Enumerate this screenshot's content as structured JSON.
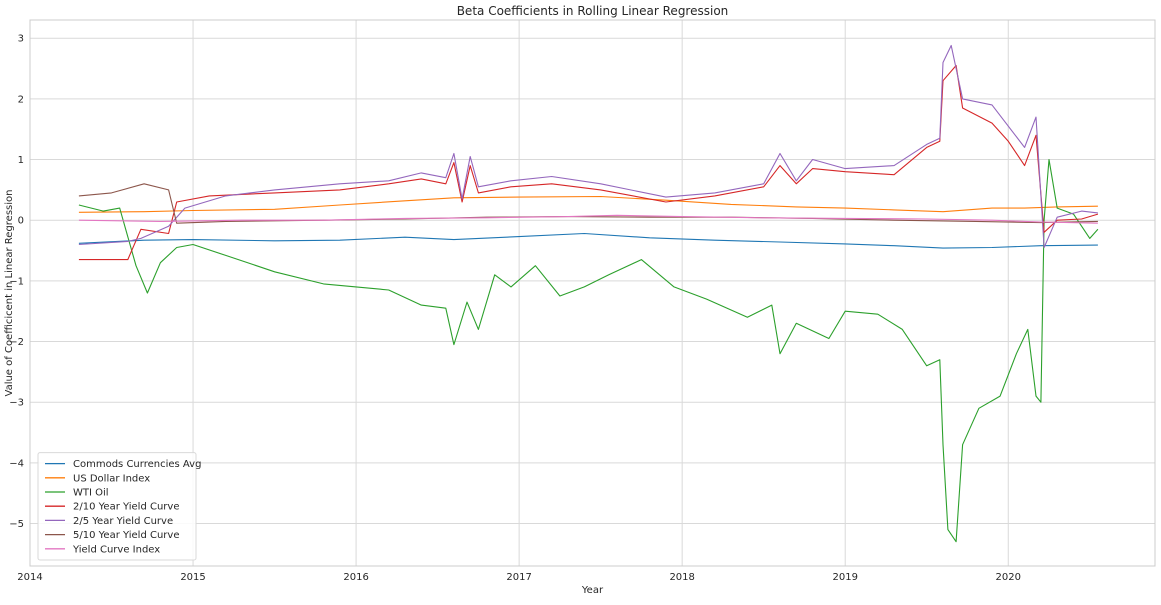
{
  "chart_data": {
    "type": "line",
    "title": "Beta Coefficients in Rolling Linear Regression",
    "xlabel": "Year",
    "ylabel": "Value of Coefficicent in Linear Regression",
    "x_ticks": [
      "2014",
      "2015",
      "2016",
      "2017",
      "2018",
      "2019",
      "2020"
    ],
    "x_tick_values": [
      2014,
      2015,
      2016,
      2017,
      2018,
      2019,
      2020
    ],
    "xlim": [
      2014.0,
      2020.9
    ],
    "y_ticks": [
      "−5",
      "−4",
      "−3",
      "−2",
      "−1",
      "0",
      "1",
      "2",
      "3"
    ],
    "y_tick_values": [
      -5,
      -4,
      -3,
      -2,
      -1,
      0,
      1,
      2,
      3
    ],
    "ylim": [
      -5.7,
      3.3
    ],
    "grid": true,
    "legend_position": "lower-left",
    "series": [
      {
        "name": "Commods Currencies Avg",
        "color": "#1f77b4",
        "points": [
          [
            2014.3,
            -0.38
          ],
          [
            2014.7,
            -0.33
          ],
          [
            2015.0,
            -0.32
          ],
          [
            2015.5,
            -0.34
          ],
          [
            2015.9,
            -0.33
          ],
          [
            2016.3,
            -0.28
          ],
          [
            2016.6,
            -0.32
          ],
          [
            2017.0,
            -0.27
          ],
          [
            2017.4,
            -0.22
          ],
          [
            2017.8,
            -0.29
          ],
          [
            2018.2,
            -0.33
          ],
          [
            2018.6,
            -0.36
          ],
          [
            2019.0,
            -0.39
          ],
          [
            2019.3,
            -0.42
          ],
          [
            2019.6,
            -0.46
          ],
          [
            2019.9,
            -0.45
          ],
          [
            2020.2,
            -0.42
          ],
          [
            2020.55,
            -0.41
          ]
        ]
      },
      {
        "name": "US Dollar Index",
        "color": "#ff7f0e",
        "points": [
          [
            2014.3,
            0.13
          ],
          [
            2014.7,
            0.14
          ],
          [
            2015.0,
            0.16
          ],
          [
            2015.5,
            0.18
          ],
          [
            2015.9,
            0.25
          ],
          [
            2016.3,
            0.32
          ],
          [
            2016.6,
            0.37
          ],
          [
            2017.0,
            0.38
          ],
          [
            2017.5,
            0.39
          ],
          [
            2017.9,
            0.33
          ],
          [
            2018.3,
            0.26
          ],
          [
            2018.7,
            0.22
          ],
          [
            2019.0,
            0.2
          ],
          [
            2019.3,
            0.17
          ],
          [
            2019.6,
            0.14
          ],
          [
            2019.9,
            0.2
          ],
          [
            2020.1,
            0.2
          ],
          [
            2020.3,
            0.22
          ],
          [
            2020.55,
            0.23
          ]
        ]
      },
      {
        "name": "WTI Oil",
        "color": "#2ca02c",
        "points": [
          [
            2014.3,
            0.25
          ],
          [
            2014.45,
            0.15
          ],
          [
            2014.55,
            0.2
          ],
          [
            2014.65,
            -0.75
          ],
          [
            2014.72,
            -1.2
          ],
          [
            2014.8,
            -0.7
          ],
          [
            2014.9,
            -0.45
          ],
          [
            2015.0,
            -0.4
          ],
          [
            2015.2,
            -0.58
          ],
          [
            2015.5,
            -0.85
          ],
          [
            2015.8,
            -1.05
          ],
          [
            2016.0,
            -1.1
          ],
          [
            2016.2,
            -1.15
          ],
          [
            2016.4,
            -1.4
          ],
          [
            2016.55,
            -1.45
          ],
          [
            2016.6,
            -2.05
          ],
          [
            2016.68,
            -1.35
          ],
          [
            2016.75,
            -1.8
          ],
          [
            2016.85,
            -0.9
          ],
          [
            2016.95,
            -1.1
          ],
          [
            2017.1,
            -0.75
          ],
          [
            2017.25,
            -1.25
          ],
          [
            2017.4,
            -1.1
          ],
          [
            2017.55,
            -0.9
          ],
          [
            2017.75,
            -0.65
          ],
          [
            2017.95,
            -1.1
          ],
          [
            2018.15,
            -1.3
          ],
          [
            2018.4,
            -1.6
          ],
          [
            2018.55,
            -1.4
          ],
          [
            2018.6,
            -2.2
          ],
          [
            2018.7,
            -1.7
          ],
          [
            2018.9,
            -1.95
          ],
          [
            2019.0,
            -1.5
          ],
          [
            2019.2,
            -1.55
          ],
          [
            2019.35,
            -1.8
          ],
          [
            2019.5,
            -2.4
          ],
          [
            2019.58,
            -2.3
          ],
          [
            2019.6,
            -3.7
          ],
          [
            2019.63,
            -5.1
          ],
          [
            2019.68,
            -5.3
          ],
          [
            2019.72,
            -3.7
          ],
          [
            2019.82,
            -3.1
          ],
          [
            2019.95,
            -2.9
          ],
          [
            2020.05,
            -2.2
          ],
          [
            2020.12,
            -1.8
          ],
          [
            2020.17,
            -2.9
          ],
          [
            2020.2,
            -3.0
          ],
          [
            2020.22,
            0.0
          ],
          [
            2020.25,
            1.0
          ],
          [
            2020.3,
            0.2
          ],
          [
            2020.4,
            0.1
          ],
          [
            2020.5,
            -0.3
          ],
          [
            2020.55,
            -0.15
          ]
        ]
      },
      {
        "name": "2/10 Year Yield Curve",
        "color": "#d62728",
        "points": [
          [
            2014.3,
            -0.65
          ],
          [
            2014.6,
            -0.65
          ],
          [
            2014.68,
            -0.15
          ],
          [
            2014.85,
            -0.22
          ],
          [
            2014.9,
            0.3
          ],
          [
            2015.1,
            0.4
          ],
          [
            2015.5,
            0.45
          ],
          [
            2015.9,
            0.5
          ],
          [
            2016.2,
            0.6
          ],
          [
            2016.4,
            0.68
          ],
          [
            2016.55,
            0.6
          ],
          [
            2016.6,
            0.95
          ],
          [
            2016.65,
            0.3
          ],
          [
            2016.7,
            0.9
          ],
          [
            2016.75,
            0.45
          ],
          [
            2016.95,
            0.55
          ],
          [
            2017.2,
            0.6
          ],
          [
            2017.5,
            0.5
          ],
          [
            2017.9,
            0.3
          ],
          [
            2018.2,
            0.4
          ],
          [
            2018.5,
            0.55
          ],
          [
            2018.6,
            0.9
          ],
          [
            2018.7,
            0.6
          ],
          [
            2018.8,
            0.85
          ],
          [
            2019.0,
            0.8
          ],
          [
            2019.3,
            0.75
          ],
          [
            2019.5,
            1.2
          ],
          [
            2019.58,
            1.3
          ],
          [
            2019.6,
            2.3
          ],
          [
            2019.68,
            2.55
          ],
          [
            2019.72,
            1.85
          ],
          [
            2019.9,
            1.6
          ],
          [
            2020.0,
            1.3
          ],
          [
            2020.1,
            0.9
          ],
          [
            2020.17,
            1.4
          ],
          [
            2020.22,
            -0.2
          ],
          [
            2020.3,
            0.0
          ],
          [
            2020.45,
            0.02
          ],
          [
            2020.55,
            0.1
          ]
        ]
      },
      {
        "name": "2/5 Year Yield Curve",
        "color": "#9467bd",
        "points": [
          [
            2014.3,
            -0.4
          ],
          [
            2014.6,
            -0.35
          ],
          [
            2014.68,
            -0.3
          ],
          [
            2014.85,
            -0.1
          ],
          [
            2014.95,
            0.2
          ],
          [
            2015.2,
            0.4
          ],
          [
            2015.5,
            0.5
          ],
          [
            2015.9,
            0.6
          ],
          [
            2016.2,
            0.65
          ],
          [
            2016.4,
            0.78
          ],
          [
            2016.55,
            0.7
          ],
          [
            2016.6,
            1.1
          ],
          [
            2016.65,
            0.35
          ],
          [
            2016.7,
            1.05
          ],
          [
            2016.75,
            0.55
          ],
          [
            2016.95,
            0.65
          ],
          [
            2017.2,
            0.72
          ],
          [
            2017.5,
            0.6
          ],
          [
            2017.9,
            0.38
          ],
          [
            2018.2,
            0.45
          ],
          [
            2018.5,
            0.6
          ],
          [
            2018.6,
            1.1
          ],
          [
            2018.7,
            0.65
          ],
          [
            2018.8,
            1.0
          ],
          [
            2019.0,
            0.85
          ],
          [
            2019.3,
            0.9
          ],
          [
            2019.5,
            1.25
          ],
          [
            2019.58,
            1.35
          ],
          [
            2019.6,
            2.6
          ],
          [
            2019.65,
            2.88
          ],
          [
            2019.72,
            2.0
          ],
          [
            2019.9,
            1.9
          ],
          [
            2020.0,
            1.55
          ],
          [
            2020.1,
            1.2
          ],
          [
            2020.17,
            1.7
          ],
          [
            2020.22,
            -0.45
          ],
          [
            2020.3,
            0.05
          ],
          [
            2020.45,
            0.15
          ],
          [
            2020.55,
            0.12
          ]
        ]
      },
      {
        "name": "5/10 Year Yield Curve",
        "color": "#8c564b",
        "points": [
          [
            2014.3,
            0.4
          ],
          [
            2014.5,
            0.45
          ],
          [
            2014.7,
            0.6
          ],
          [
            2014.85,
            0.5
          ],
          [
            2014.9,
            -0.05
          ],
          [
            2015.2,
            -0.02
          ],
          [
            2015.8,
            0.0
          ],
          [
            2016.3,
            0.02
          ],
          [
            2016.8,
            0.05
          ],
          [
            2017.3,
            0.06
          ],
          [
            2017.8,
            0.05
          ],
          [
            2018.3,
            0.05
          ],
          [
            2018.8,
            0.03
          ],
          [
            2019.3,
            0.0
          ],
          [
            2019.8,
            -0.02
          ],
          [
            2020.2,
            -0.04
          ],
          [
            2020.55,
            -0.02
          ]
        ]
      },
      {
        "name": "Yield Curve Index",
        "color": "#e377c2",
        "points": [
          [
            2014.3,
            0.0
          ],
          [
            2014.8,
            -0.02
          ],
          [
            2015.3,
            0.0
          ],
          [
            2015.8,
            0.0
          ],
          [
            2016.3,
            0.03
          ],
          [
            2016.8,
            0.04
          ],
          [
            2017.3,
            0.06
          ],
          [
            2017.6,
            0.08
          ],
          [
            2018.0,
            0.06
          ],
          [
            2018.5,
            0.04
          ],
          [
            2019.0,
            0.03
          ],
          [
            2019.5,
            0.02
          ],
          [
            2019.9,
            0.0
          ],
          [
            2020.2,
            -0.03
          ],
          [
            2020.55,
            -0.05
          ]
        ]
      }
    ]
  }
}
